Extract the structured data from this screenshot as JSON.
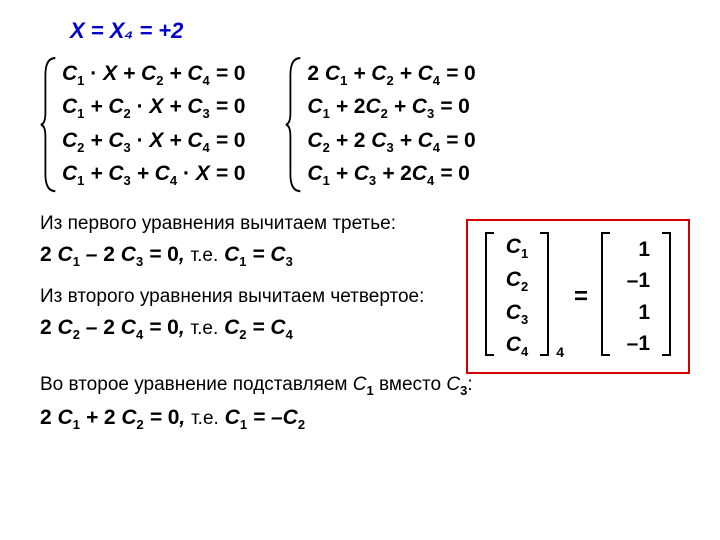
{
  "header": "X  =  X₄  =  +2",
  "systemA": [
    "C<sub class='sub'>1</sub> <span class='dot'>·</span> X  +  C<sub class='sub'>2</sub>  +  C<sub class='sub'>4</sub>  =  <span class='n'>0</span>",
    "C<sub class='sub'>1</sub>  +  C<sub class='sub'>2</sub> <span class='dot'>·</span> X  +  C<sub class='sub'>3</sub>  =  <span class='n'>0</span>",
    "C<sub class='sub'>2</sub>  +  C<sub class='sub'>3</sub> <span class='dot'>·</span> X  +  C<sub class='sub'>4</sub>  =  <span class='n'>0</span>",
    "C<sub class='sub'>1</sub>  +  C<sub class='sub'>3</sub>  +  C<sub class='sub'>4</sub> <span class='dot'>·</span> X  =  <span class='n'>0</span>"
  ],
  "systemB": [
    "<span class='n'>2</span> C<sub class='sub'>1</sub>  +  C<sub class='sub'>2</sub>  +  C<sub class='sub'>4</sub>  =  <span class='n'>0</span>",
    "C<sub class='sub'>1</sub>  +  <span class='n'>2</span>C<sub class='sub'>2</sub>   +  C<sub class='sub'>3</sub>  =  <span class='n'>0</span>",
    "C<sub class='sub'>2</sub>  +  <span class='n'>2</span> C<sub class='sub'>3</sub>  +  C<sub class='sub'>4</sub>  =  <span class='n'>0</span>",
    "C<sub class='sub'>1</sub>  +  C<sub class='sub'>3</sub>  +  <span class='n'>2</span>C<sub class='sub'>4</sub>  =  <span class='n'>0</span>"
  ],
  "t1": "Из первого уравнения вычитаем третье:",
  "e1": "<span class='n'>2</span> C<sub class='sub'>1</sub>  –  <span class='n'>2</span> C<sub class='sub'>3</sub>  =  <span class='n'>0</span>,  <span class='txt'>т.е.</span>  C<sub class='sub'>1</sub>  =  C<sub class='sub'>3</sub>",
  "t2": "Из второго уравнения вычитаем четвертое:",
  "e2": "<span class='n'>2</span> C<sub class='sub'>2</sub>  –  <span class='n'>2</span> C<sub class='sub'>4</sub>  =  <span class='n'>0</span>,  <span class='txt'>т.е.</span>  C<sub class='sub'>2</sub>  =  C<sub class='sub'>4</sub>",
  "t3": "Во второе уравнение подставляем <span class='it'>C</span><sub class='sub'>1</sub> вместо <span class='it'>C</span><sub class='sub'>3</sub>:",
  "e3": "<span class='n'>2</span> C<sub class='sub'>1</sub>  +  <span class='n'>2</span> C<sub class='sub'>2</sub>  =  <span class='n'>0</span>,  <span class='txt'>т.е.</span>  C<sub class='sub'>1</sub>  =  –C<sub class='sub'>2</sub>",
  "matrix": {
    "left": [
      "C<sub class='sub'>1</sub>",
      "C<sub class='sub'>2</sub>",
      "C<sub class='sub'>3</sub>",
      "C<sub class='sub'>4</sub>"
    ],
    "subscript": "4",
    "right": [
      "<span class='n'>1</span>",
      "<span class='n'>–1</span>",
      "<span class='n'>1</span>",
      "<span class='n'>–1</span>"
    ]
  },
  "colors": {
    "header": "#0000cc",
    "box": "#d40000",
    "text": "#000000",
    "bg": "#ffffff"
  }
}
